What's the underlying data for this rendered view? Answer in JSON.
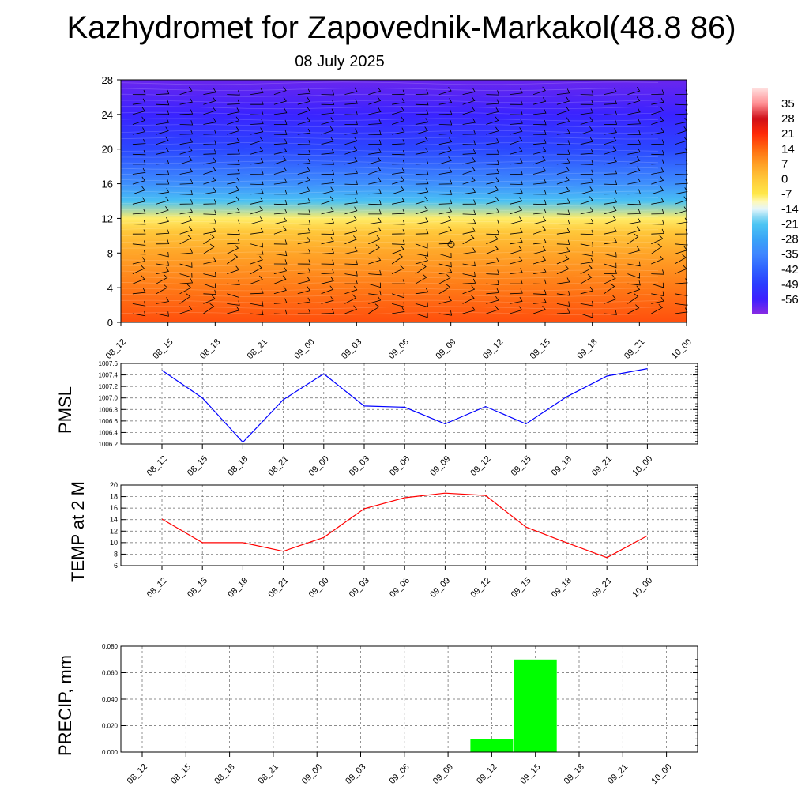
{
  "title": "Kazhydromet for Zapovednik-Markakol(48.8 86)",
  "subtitle": "08 July 2025",
  "time_labels": [
    "08_12",
    "08_15",
    "08_18",
    "08_21",
    "09_00",
    "09_03",
    "09_06",
    "09_09",
    "09_12",
    "09_15",
    "09_18",
    "09_21",
    "10_00"
  ],
  "colors": {
    "pmsl_line": "#0000ff",
    "temp_line": "#ff0000",
    "precip_bar": "#00ff00",
    "grid": "#000000"
  },
  "chart_data": [
    {
      "type": "heatmap",
      "title": "",
      "xlabel": "",
      "ylabel": "",
      "x": [
        "08_12",
        "08_15",
        "08_18",
        "08_21",
        "09_00",
        "09_03",
        "09_06",
        "09_09",
        "09_12",
        "09_15",
        "09_18",
        "09_21",
        "10_00"
      ],
      "y_ticks": [
        0,
        4,
        8,
        12,
        16,
        20,
        24,
        28
      ],
      "ylim": [
        0,
        28
      ],
      "colorbar_ticks": [
        "35",
        "28",
        "21",
        "14",
        "7",
        "0",
        "-7",
        "-14",
        "-21",
        "-28",
        "-35",
        "-42",
        "-49",
        "-56"
      ],
      "colorbar_range": [
        -63,
        42
      ],
      "temperature_profile": [
        {
          "level": 0,
          "value": 17
        },
        {
          "level": 4,
          "value": 12
        },
        {
          "level": 8,
          "value": 6
        },
        {
          "level": 10.5,
          "value": 0
        },
        {
          "level": 12,
          "value": -8
        },
        {
          "level": 14,
          "value": -22
        },
        {
          "level": 16,
          "value": -33
        },
        {
          "level": 20,
          "value": -47
        },
        {
          "level": 24,
          "value": -55
        },
        {
          "level": 28,
          "value": -60
        }
      ],
      "wind_barbs": true,
      "grid": false
    },
    {
      "type": "line",
      "title": "",
      "xlabel": "",
      "ylabel": "PMSL",
      "categories": [
        "08_12",
        "08_15",
        "08_18",
        "08_21",
        "09_00",
        "09_03",
        "09_06",
        "09_09",
        "09_12",
        "09_15",
        "09_18",
        "09_21",
        "10_00"
      ],
      "series": [
        {
          "values": [
            1007.48,
            1007.0,
            1006.23,
            1006.97,
            1007.42,
            1006.86,
            1006.84,
            1006.55,
            1006.85,
            1006.55,
            1007.02,
            1007.38,
            1007.51
          ]
        }
      ],
      "yticks": [
        "1006.2",
        "1006.4",
        "1006.6",
        "1006.8",
        "1007.0",
        "1007.2",
        "1007.4",
        "1007.6"
      ],
      "ylim": [
        1006.2,
        1007.6
      ],
      "grid": true
    },
    {
      "type": "line",
      "title": "",
      "xlabel": "",
      "ylabel": "TEMP at 2 M",
      "categories": [
        "08_12",
        "08_15",
        "08_18",
        "08_21",
        "09_00",
        "09_03",
        "09_06",
        "09_09",
        "09_12",
        "09_15",
        "09_18",
        "09_21",
        "10_00"
      ],
      "series": [
        {
          "values": [
            14.1,
            10.0,
            10.0,
            8.5,
            10.9,
            15.9,
            17.8,
            18.6,
            18.2,
            12.7,
            10.0,
            7.4,
            11.2
          ]
        }
      ],
      "yticks": [
        "6",
        "8",
        "10",
        "12",
        "14",
        "16",
        "18",
        "20"
      ],
      "ylim": [
        6,
        20
      ],
      "grid": true
    },
    {
      "type": "bar",
      "title": "",
      "xlabel": "",
      "ylabel": "PRECIP, mm",
      "categories": [
        "08_12",
        "08_15",
        "08_18",
        "08_21",
        "09_00",
        "09_03",
        "09_06",
        "09_09",
        "09_12",
        "09_15",
        "09_18",
        "09_21",
        "10_00"
      ],
      "values": [
        0,
        0,
        0,
        0,
        0,
        0,
        0,
        0,
        0.01,
        0.07,
        0,
        0,
        0
      ],
      "yticks": [
        "0.000",
        "0.020",
        "0.040",
        "0.060",
        "0.080"
      ],
      "ylim": [
        0,
        0.08
      ],
      "grid": true
    }
  ]
}
